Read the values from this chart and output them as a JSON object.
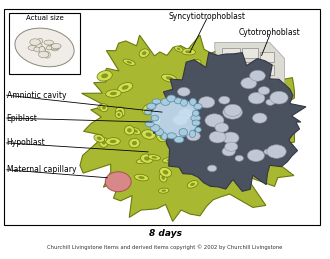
{
  "title": "8 days",
  "copyright": "Churchill Livingstone Items and derived items copyright © 2002 by Churchill Livingstone",
  "labels": {
    "actual_size": "Actual size",
    "amniotic_cavity": "Amniotic cavity",
    "epiblast": "Epiblast",
    "hypoblast": "Hypoblast",
    "maternal_capillary": "Maternal capillary",
    "syncytiotrophoblast": "Syncytiotrophoblast",
    "cytotrophoblast": "Cytotrophoblast"
  },
  "colors": {
    "background": "#ffffff",
    "green_outer": "#a8b830",
    "green_cell_fill": "#c8d840",
    "green_cell_edge": "#6a7a10",
    "dark_mass": "#505868",
    "gray_lacunae": "#b8c0cc",
    "amniotic_fill": "#b8d8f0",
    "amniotic_cell": "#90b8d8",
    "cytotro_fill": "#e0e0dc",
    "cytotro_edge": "#aaaaaa",
    "villus_fill": "#d0d0c8",
    "maternal_cap": "#d88888",
    "text_color": "#000000",
    "box_color": "#000000"
  },
  "figure_width": 3.3,
  "figure_height": 2.59,
  "dpi": 100
}
